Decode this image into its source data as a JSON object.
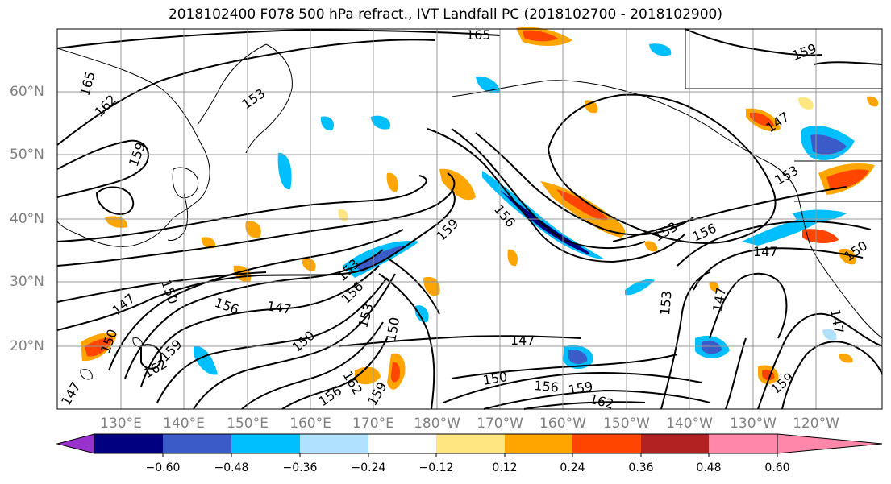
{
  "title": "2018102400 F078 500 hPa refract., IVT Landfall PC (2018102700 - 2018102900)",
  "lat_labels": [
    "60°N",
    "50°N",
    "40°N",
    "30°N",
    "20°N"
  ],
  "lon_labels": [
    "130°E",
    "140°E",
    "150°E",
    "160°E",
    "170°E",
    "180°W",
    "170°W",
    "160°W",
    "150°W",
    "140°W",
    "130°W",
    "120°W"
  ],
  "colorbar": {
    "labels": [
      "−0.60",
      "−0.48",
      "−0.36",
      "−0.24",
      "−0.12",
      "0.12",
      "0.24",
      "0.36",
      "0.48",
      "0.60"
    ],
    "colors": [
      "#9932cc",
      "#000080",
      "#3a5bc8",
      "#00bfff",
      "#b0e2ff",
      "#ffffff",
      "#ffe680",
      "#ffa500",
      "#ff4500",
      "#b22222",
      "#ff88aa"
    ]
  },
  "contour_labels": [
    "165",
    "162",
    "159",
    "156",
    "153",
    "150",
    "147",
    "159",
    "153",
    "156",
    "150",
    "147",
    "153",
    "156",
    "150",
    "147",
    "162",
    "159",
    "156",
    "153",
    "147",
    "150",
    "156",
    "159",
    "162",
    "150",
    "147",
    "159",
    "147",
    "162",
    "165",
    "159",
    "156",
    "153",
    "147",
    "150",
    "153",
    "147",
    "159"
  ]
}
